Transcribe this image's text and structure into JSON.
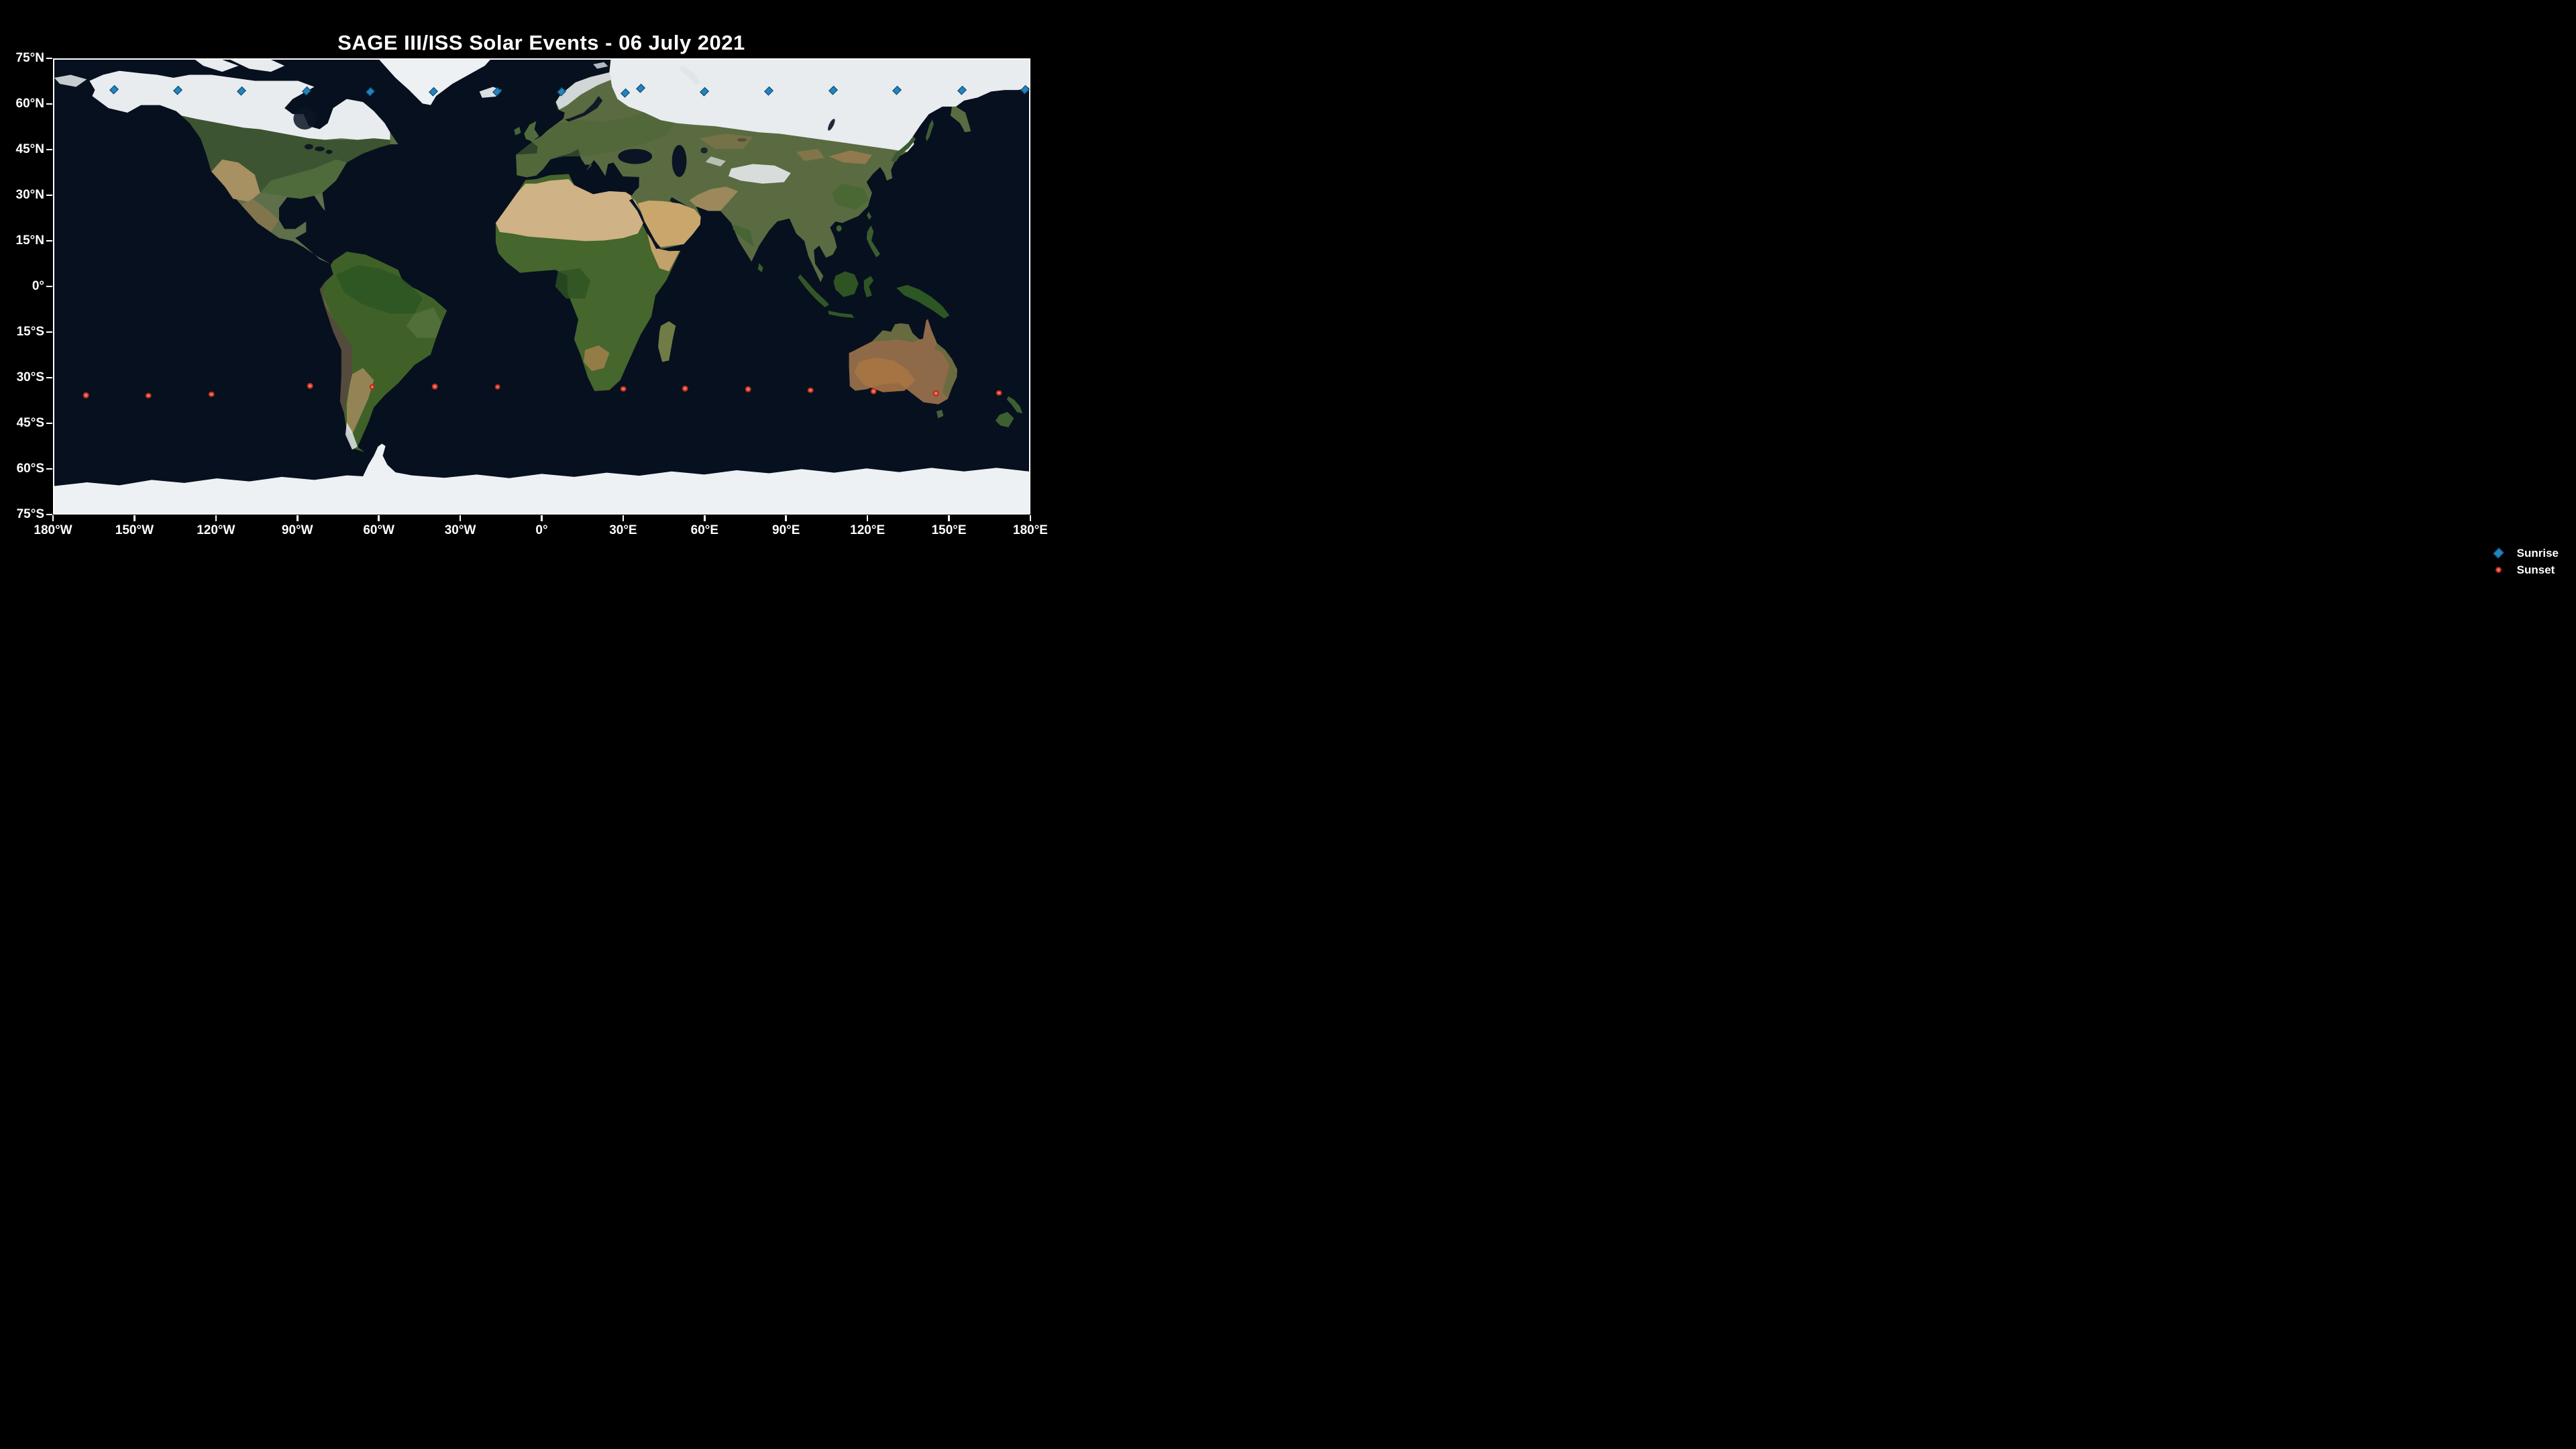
{
  "title": "SAGE III/ISS Solar Events - 06 July 2021",
  "colors": {
    "background": "#000000",
    "ocean": "#07101f",
    "axis": "#ffffff",
    "sunrise_fill": "#2383bd",
    "sunrise_edge": "#11476d",
    "sunset_fill": "#f4705c",
    "sunset_edge": "#b52b1c"
  },
  "axes": {
    "lat_range": [
      -75,
      75
    ],
    "lon_range": [
      -180,
      180
    ],
    "lat_ticks": [
      {
        "value": 75,
        "label": "75°N"
      },
      {
        "value": 60,
        "label": "60°N"
      },
      {
        "value": 45,
        "label": "45°N"
      },
      {
        "value": 30,
        "label": "30°N"
      },
      {
        "value": 15,
        "label": "15°N"
      },
      {
        "value": 0,
        "label": "0°"
      },
      {
        "value": -15,
        "label": "15°S"
      },
      {
        "value": -30,
        "label": "30°S"
      },
      {
        "value": -45,
        "label": "45°S"
      },
      {
        "value": -60,
        "label": "60°S"
      },
      {
        "value": -75,
        "label": "75°S"
      }
    ],
    "lon_ticks": [
      {
        "value": -180,
        "label": "180°W"
      },
      {
        "value": -150,
        "label": "150°W"
      },
      {
        "value": -120,
        "label": "120°W"
      },
      {
        "value": -90,
        "label": "90°W"
      },
      {
        "value": -60,
        "label": "60°W"
      },
      {
        "value": -30,
        "label": "30°W"
      },
      {
        "value": 0,
        "label": "0°"
      },
      {
        "value": 30,
        "label": "30°E"
      },
      {
        "value": 60,
        "label": "60°E"
      },
      {
        "value": 90,
        "label": "90°E"
      },
      {
        "value": 120,
        "label": "120°E"
      },
      {
        "value": 150,
        "label": "150°E"
      },
      {
        "value": 180,
        "label": "180°E"
      }
    ]
  },
  "legend": {
    "items": [
      {
        "label": "Sunrise",
        "marker": "diamond"
      },
      {
        "label": "Sunset",
        "marker": "circle"
      }
    ]
  },
  "chart_data": {
    "type": "scatter",
    "title": "SAGE III/ISS Solar Events - 06 July 2021",
    "basemap": "Blue Marble satellite world map, equirectangular",
    "xlim": [
      -180,
      180
    ],
    "ylim": [
      -75,
      75
    ],
    "legend_position": "lower right (below axes)",
    "grid": false,
    "series": [
      {
        "name": "Sunrise",
        "marker": "diamond",
        "color": "#2383bd",
        "points_lon_lat": [
          [
            -157.9,
            65.1
          ],
          [
            -134.4,
            64.8
          ],
          [
            -110.8,
            64.6
          ],
          [
            -86.9,
            64.5
          ],
          [
            -63.4,
            64.4
          ],
          [
            -40.1,
            64.3
          ],
          [
            -16.4,
            64.3
          ],
          [
            7.3,
            64.4
          ],
          [
            30.9,
            63.9
          ],
          [
            36.6,
            65.4
          ],
          [
            60.0,
            64.4
          ],
          [
            83.9,
            64.5
          ],
          [
            107.6,
            64.7
          ],
          [
            131.1,
            64.8
          ],
          [
            155.2,
            64.9
          ],
          [
            178.6,
            65.0
          ]
        ]
      },
      {
        "name": "Sunset",
        "marker": "circle",
        "color": "#f4705c",
        "points_lon_lat": [
          [
            -168.3,
            -36.0
          ],
          [
            -145.3,
            -36.1
          ],
          [
            -122.0,
            -35.7
          ],
          [
            -85.5,
            -32.9
          ],
          [
            -62.6,
            -33.2
          ],
          [
            -39.4,
            -33.1
          ],
          [
            -16.3,
            -33.2
          ],
          [
            30.1,
            -33.9
          ],
          [
            53.0,
            -33.8
          ],
          [
            76.2,
            -34.0
          ],
          [
            99.3,
            -34.3
          ],
          [
            122.6,
            -34.7
          ],
          [
            145.6,
            -35.3
          ],
          [
            168.9,
            -35.2
          ]
        ]
      }
    ]
  }
}
